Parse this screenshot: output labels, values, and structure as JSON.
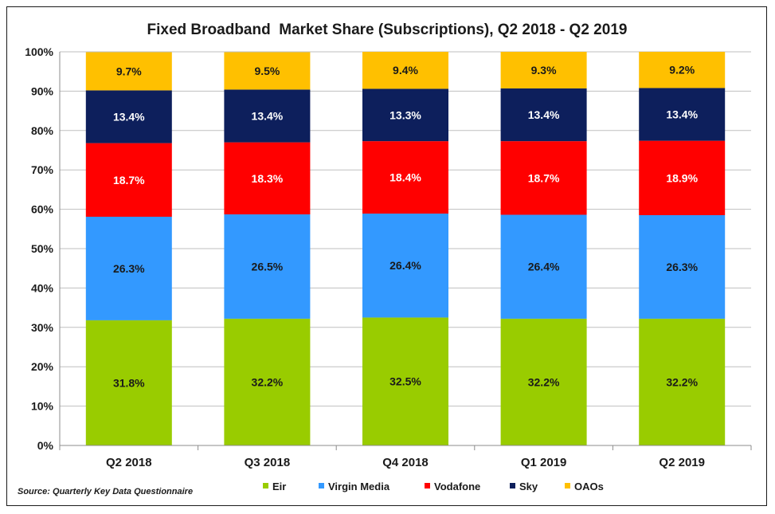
{
  "source_note": "Source: Quarterly Key Data Questionnaire",
  "chart_data": {
    "type": "bar",
    "stacked": true,
    "title": "Fixed Broadband  Market Share (Subscriptions), Q2 2018 - Q2 2019",
    "categories": [
      "Q2 2018",
      "Q3 2018",
      "Q4 2018",
      "Q1 2019",
      "Q2 2019"
    ],
    "y_ticks": [
      "0%",
      "10%",
      "20%",
      "30%",
      "40%",
      "50%",
      "60%",
      "70%",
      "80%",
      "90%",
      "100%"
    ],
    "ylim": [
      0,
      100
    ],
    "grid": true,
    "legend_position": "bottom",
    "series": [
      {
        "name": "Eir",
        "color": "#99cc00",
        "label_color": "#1a1a1a",
        "values": [
          31.8,
          32.2,
          32.5,
          32.2,
          32.2
        ],
        "labels": [
          "31.8%",
          "32.2%",
          "32.5%",
          "32.2%",
          "32.2%"
        ]
      },
      {
        "name": "Virgin Media",
        "color": "#3399ff",
        "label_color": "#1a1a1a",
        "values": [
          26.3,
          26.5,
          26.4,
          26.4,
          26.3
        ],
        "labels": [
          "26.3%",
          "26.5%",
          "26.4%",
          "26.4%",
          "26.3%"
        ]
      },
      {
        "name": "Vodafone",
        "color": "#ff0000",
        "label_color": "#ffffff",
        "values": [
          18.7,
          18.3,
          18.4,
          18.7,
          18.9
        ],
        "labels": [
          "18.7%",
          "18.3%",
          "18.4%",
          "18.7%",
          "18.9%"
        ]
      },
      {
        "name": "Sky",
        "color": "#0d1f5c",
        "label_color": "#ffffff",
        "values": [
          13.4,
          13.4,
          13.3,
          13.4,
          13.4
        ],
        "labels": [
          "13.4%",
          "13.4%",
          "13.3%",
          "13.4%",
          "13.4%"
        ]
      },
      {
        "name": "OAOs",
        "color": "#ffc000",
        "label_color": "#1a1a1a",
        "values": [
          9.7,
          9.5,
          9.4,
          9.3,
          9.2
        ],
        "labels": [
          "9.7%",
          "9.5%",
          "9.4%",
          "9.3%",
          "9.2%"
        ]
      }
    ]
  }
}
